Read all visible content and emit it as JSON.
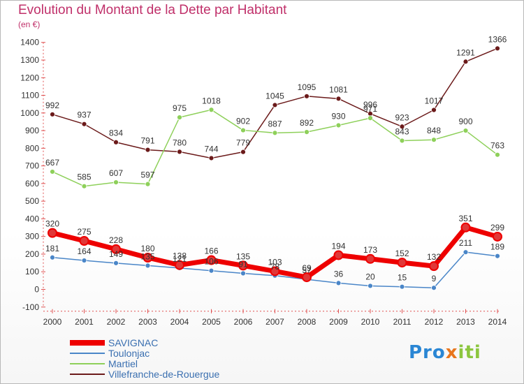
{
  "title": "Evolution du Montant de la Dette par Habitant",
  "subtitle": "(en €)",
  "logo": {
    "part1": "Pro",
    "part2": "x",
    "part3": "iti"
  },
  "chart_data": {
    "type": "line",
    "title": "Evolution du Montant de la Dette par Habitant",
    "ylabel": "(en €)",
    "xlabel": "",
    "ylim": [
      -100,
      1400
    ],
    "yticks": [
      -100,
      0,
      100,
      200,
      300,
      400,
      500,
      600,
      700,
      800,
      900,
      1000,
      1100,
      1200,
      1300,
      1400
    ],
    "grid": false,
    "legend_position": "bottom-left",
    "categories": [
      "2000",
      "2001",
      "2002",
      "2003",
      "2004",
      "2005",
      "2006",
      "2007",
      "2008",
      "2009",
      "2010",
      "2011",
      "2012",
      "2013",
      "2014"
    ],
    "series": [
      {
        "name": "Villefranche-de-Rouergue",
        "color": "#6b1a1a",
        "values": [
          992,
          937,
          834,
          791,
          780,
          744,
          779,
          1045,
          1095,
          1081,
          996,
          923,
          1017,
          1291,
          1366
        ]
      },
      {
        "name": "Martiel",
        "color": "#8ed05a",
        "values": [
          667,
          585,
          607,
          597,
          975,
          1018,
          902,
          887,
          892,
          930,
          971,
          843,
          848,
          900,
          763
        ]
      },
      {
        "name": "Toulonjac",
        "color": "#4a86c8",
        "values": [
          181,
          164,
          149,
          135,
          121,
          106,
          91,
          78,
          57,
          36,
          20,
          15,
          9,
          211,
          189
        ]
      },
      {
        "name": "SAVIGNAC",
        "color": "#ee0000",
        "values": [
          320,
          275,
          228,
          180,
          138,
          166,
          135,
          103,
          69,
          194,
          173,
          152,
          132,
          351,
          299
        ]
      }
    ]
  }
}
